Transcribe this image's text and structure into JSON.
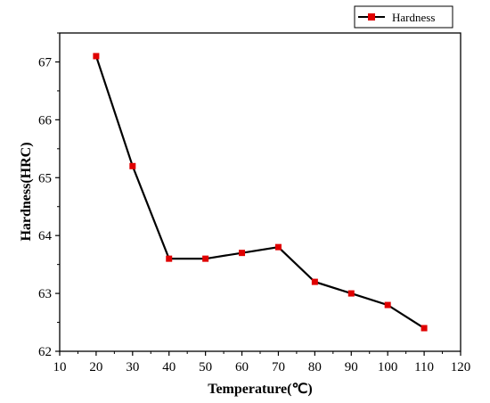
{
  "chart_data": {
    "type": "line",
    "xlabel": "Temperature(℃)",
    "ylabel": "Hardness(HRC)",
    "xlim": [
      10,
      120
    ],
    "ylim": [
      62,
      67.5
    ],
    "xticks": [
      10,
      20,
      30,
      40,
      50,
      60,
      70,
      80,
      90,
      100,
      110,
      120
    ],
    "yticks": [
      62,
      63,
      64,
      65,
      66,
      67
    ],
    "grid": false,
    "legend_position": "top-right",
    "series": [
      {
        "name": "Hardness",
        "color": "#e00000",
        "line_color": "#000000",
        "marker": "square",
        "x": [
          20,
          30,
          40,
          50,
          60,
          70,
          80,
          90,
          100,
          110
        ],
        "y": [
          67.1,
          65.2,
          63.6,
          63.6,
          63.7,
          63.8,
          63.2,
          63.0,
          62.8,
          62.4
        ]
      }
    ]
  }
}
